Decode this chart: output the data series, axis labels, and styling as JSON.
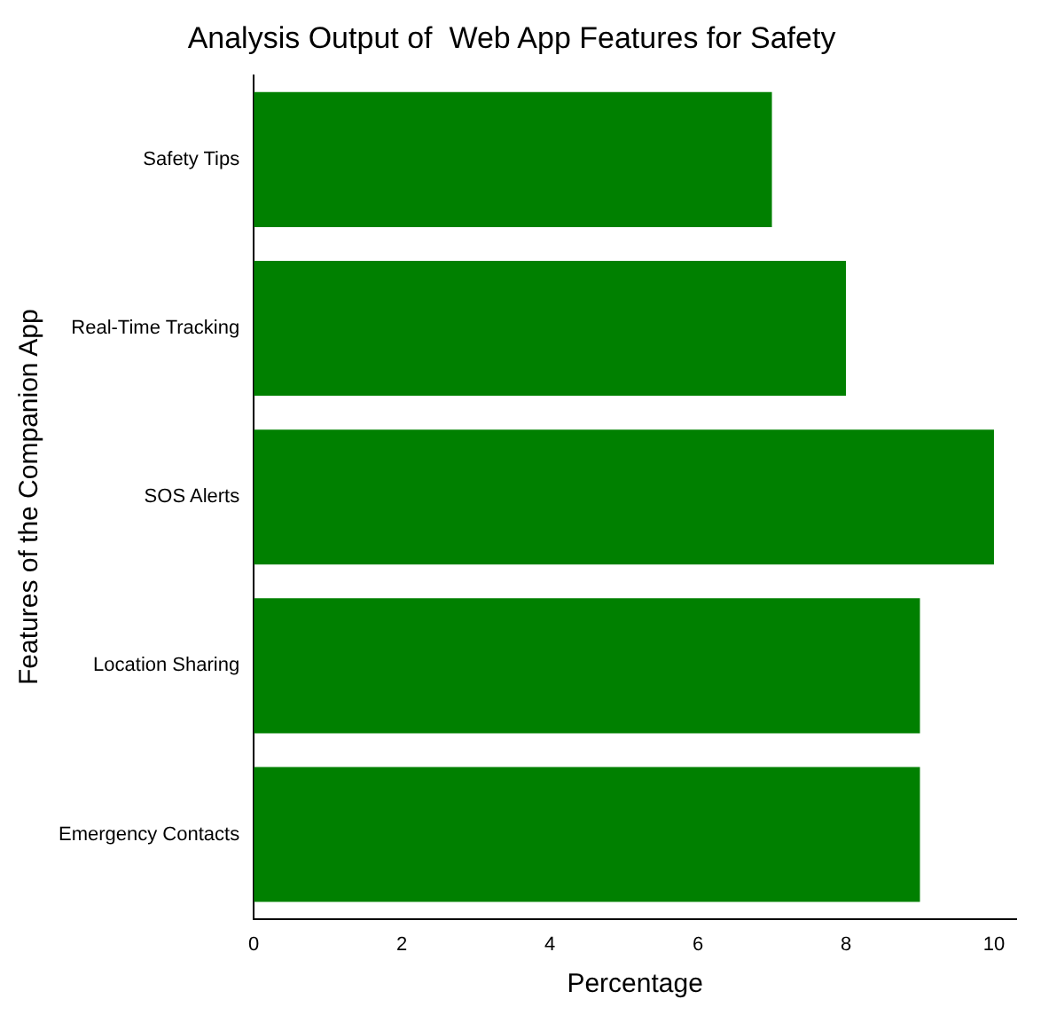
{
  "chart_data": {
    "type": "bar",
    "orientation": "horizontal",
    "title": "Analysis Output of  Web App Features for Safety",
    "xlabel": "Percentage",
    "ylabel": "Features of the Companion App",
    "categories": [
      "Safety Tips",
      "Real-Time Tracking",
      "SOS Alerts",
      "Location Sharing",
      "Emergency Contacts"
    ],
    "values": [
      7,
      8,
      10,
      9,
      9
    ],
    "color": "#008000",
    "xlim": [
      0,
      10.3
    ],
    "xticks": [
      0,
      2,
      4,
      6,
      8,
      10
    ],
    "grid": false,
    "legend": false
  }
}
